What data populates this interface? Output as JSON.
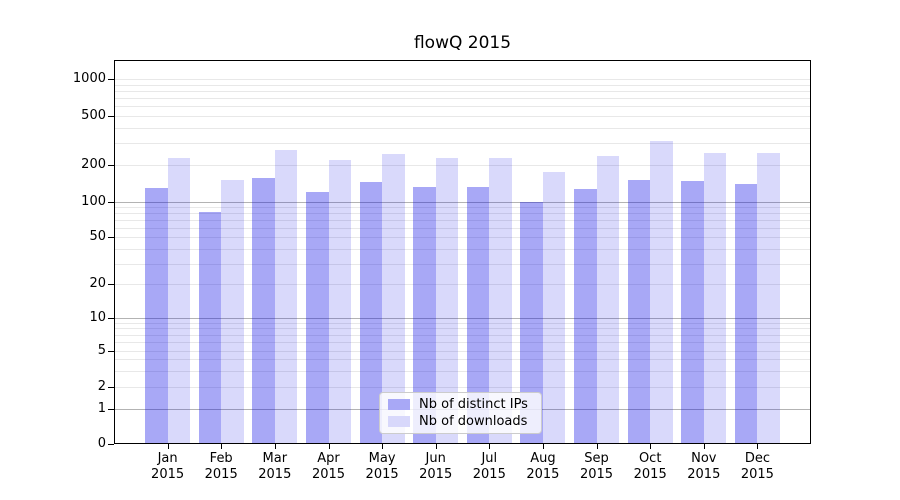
{
  "page": {
    "background": "#ffffff"
  },
  "chart_data": {
    "type": "bar",
    "title": "flowQ 2015",
    "categories": [
      "Jan",
      "Feb",
      "Mar",
      "Apr",
      "May",
      "Jun",
      "Jul",
      "Aug",
      "Sep",
      "Oct",
      "Nov",
      "Dec"
    ],
    "category_year": "2015",
    "series": [
      {
        "name": "Nb of distinct IPs",
        "color": "rgba(0,0,230,0.34)",
        "swatch_color": "#a8a8f6",
        "values": [
          130,
          82,
          157,
          121,
          145,
          132,
          132,
          100,
          126,
          150,
          148,
          140
        ]
      },
      {
        "name": "Nb of downloads",
        "color": "rgba(0,0,230,0.15)",
        "swatch_color": "#d8d8fb",
        "values": [
          228,
          151,
          263,
          218,
          243,
          226,
          226,
          174,
          237,
          310,
          249,
          250
        ]
      }
    ],
    "xlabel": "",
    "ylabel": "",
    "yscale": "symlog",
    "ylim": [
      0,
      1430
    ],
    "y_ticks": [
      0,
      1,
      2,
      5,
      10,
      20,
      50,
      100,
      200,
      500,
      1000
    ],
    "grid": {
      "orientation": "horizontal",
      "major_values": [
        1,
        10,
        100
      ],
      "minor_values": [
        2,
        3,
        4,
        5,
        6,
        7,
        8,
        9,
        20,
        30,
        40,
        50,
        60,
        70,
        80,
        90,
        200,
        300,
        400,
        500,
        600,
        700,
        800,
        900,
        1000
      ],
      "major_color": "#b3b3b3",
      "minor_color": "#e8e8e8"
    },
    "legend": {
      "position": "lower center"
    },
    "axis_color": "#000000"
  }
}
